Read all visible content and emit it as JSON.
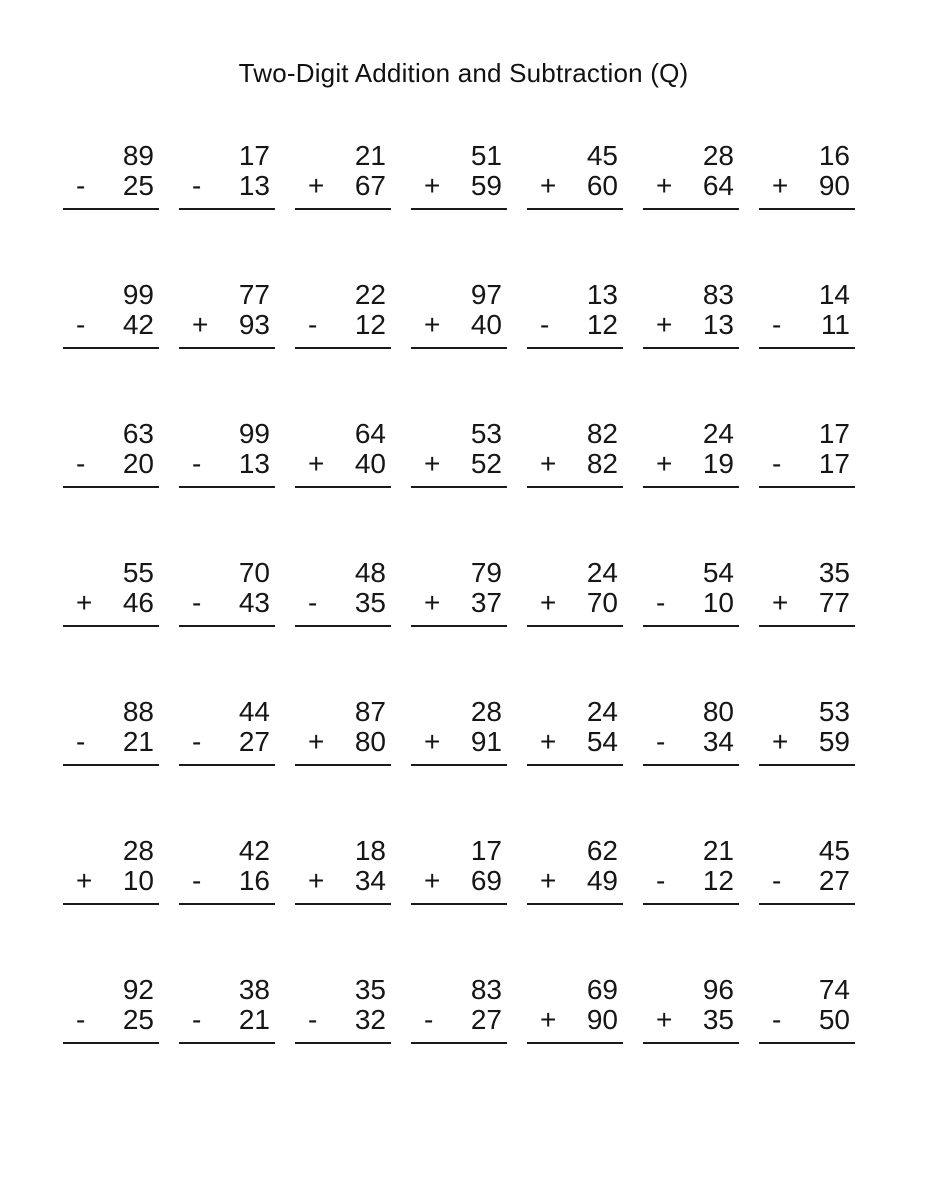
{
  "page": {
    "title": "Two-Digit Addition and Subtraction (Q)"
  },
  "worksheet": {
    "rows": [
      {
        "problems": [
          {
            "top": "89",
            "op": "-",
            "bottom": "25"
          },
          {
            "top": "17",
            "op": "-",
            "bottom": "13"
          },
          {
            "top": "21",
            "op": "+",
            "bottom": "67"
          },
          {
            "top": "51",
            "op": "+",
            "bottom": "59"
          },
          {
            "top": "45",
            "op": "+",
            "bottom": "60"
          },
          {
            "top": "28",
            "op": "+",
            "bottom": "64"
          },
          {
            "top": "16",
            "op": "+",
            "bottom": "90"
          }
        ]
      },
      {
        "problems": [
          {
            "top": "99",
            "op": "-",
            "bottom": "42"
          },
          {
            "top": "77",
            "op": "+",
            "bottom": "93"
          },
          {
            "top": "22",
            "op": "-",
            "bottom": "12"
          },
          {
            "top": "97",
            "op": "+",
            "bottom": "40"
          },
          {
            "top": "13",
            "op": "-",
            "bottom": "12"
          },
          {
            "top": "83",
            "op": "+",
            "bottom": "13"
          },
          {
            "top": "14",
            "op": "-",
            "bottom": "11"
          }
        ]
      },
      {
        "problems": [
          {
            "top": "63",
            "op": "-",
            "bottom": "20"
          },
          {
            "top": "99",
            "op": "-",
            "bottom": "13"
          },
          {
            "top": "64",
            "op": "+",
            "bottom": "40"
          },
          {
            "top": "53",
            "op": "+",
            "bottom": "52"
          },
          {
            "top": "82",
            "op": "+",
            "bottom": "82"
          },
          {
            "top": "24",
            "op": "+",
            "bottom": "19"
          },
          {
            "top": "17",
            "op": "-",
            "bottom": "17"
          }
        ]
      },
      {
        "problems": [
          {
            "top": "55",
            "op": "+",
            "bottom": "46"
          },
          {
            "top": "70",
            "op": "-",
            "bottom": "43"
          },
          {
            "top": "48",
            "op": "-",
            "bottom": "35"
          },
          {
            "top": "79",
            "op": "+",
            "bottom": "37"
          },
          {
            "top": "24",
            "op": "+",
            "bottom": "70"
          },
          {
            "top": "54",
            "op": "-",
            "bottom": "10"
          },
          {
            "top": "35",
            "op": "+",
            "bottom": "77"
          }
        ]
      },
      {
        "problems": [
          {
            "top": "88",
            "op": "-",
            "bottom": "21"
          },
          {
            "top": "44",
            "op": "-",
            "bottom": "27"
          },
          {
            "top": "87",
            "op": "+",
            "bottom": "80"
          },
          {
            "top": "28",
            "op": "+",
            "bottom": "91"
          },
          {
            "top": "24",
            "op": "+",
            "bottom": "54"
          },
          {
            "top": "80",
            "op": "-",
            "bottom": "34"
          },
          {
            "top": "53",
            "op": "+",
            "bottom": "59"
          }
        ]
      },
      {
        "problems": [
          {
            "top": "28",
            "op": "+",
            "bottom": "10"
          },
          {
            "top": "42",
            "op": "-",
            "bottom": "16"
          },
          {
            "top": "18",
            "op": "+",
            "bottom": "34"
          },
          {
            "top": "17",
            "op": "+",
            "bottom": "69"
          },
          {
            "top": "62",
            "op": "+",
            "bottom": "49"
          },
          {
            "top": "21",
            "op": "-",
            "bottom": "12"
          },
          {
            "top": "45",
            "op": "-",
            "bottom": "27"
          }
        ]
      },
      {
        "problems": [
          {
            "top": "92",
            "op": "-",
            "bottom": "25"
          },
          {
            "top": "38",
            "op": "-",
            "bottom": "21"
          },
          {
            "top": "35",
            "op": "-",
            "bottom": "32"
          },
          {
            "top": "83",
            "op": "-",
            "bottom": "27"
          },
          {
            "top": "69",
            "op": "+",
            "bottom": "90"
          },
          {
            "top": "96",
            "op": "+",
            "bottom": "35"
          },
          {
            "top": "74",
            "op": "-",
            "bottom": "50"
          }
        ]
      }
    ]
  }
}
